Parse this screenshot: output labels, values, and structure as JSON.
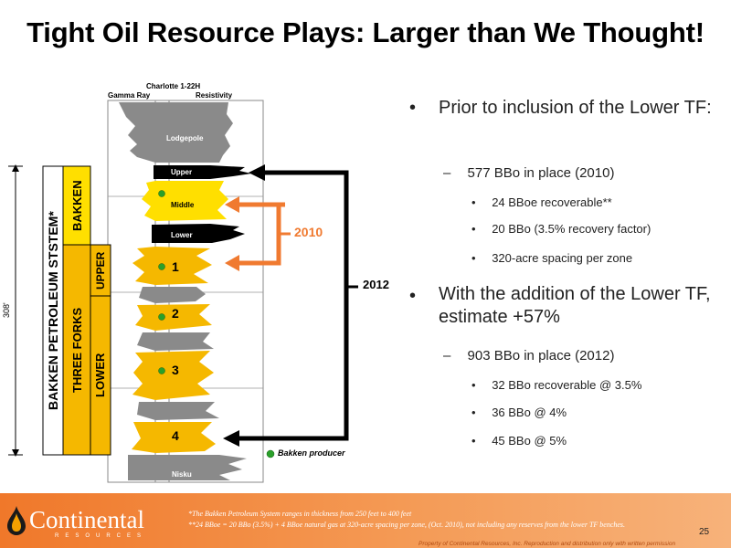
{
  "slide": {
    "title": "Tight Oil Resource Plays: Larger than We Thought!",
    "page_number": "25"
  },
  "log": {
    "well_name": "Charlotte 1-22H",
    "gamma_ray_label": "Gamma Ray",
    "resistivity_label": "Resistivity",
    "formations": {
      "lodgepole": "Lodgepole",
      "upper": "Upper",
      "middle": "Middle",
      "lower": "Lower",
      "nisku": "Nisku"
    },
    "zones": [
      "1",
      "2",
      "3",
      "4"
    ],
    "producer_legend": "Bakken producer",
    "thickness_label": "308'",
    "system_label": "BAKKEN PETROLEUM STSTEM*",
    "bakken_label": "BAKKEN",
    "three_forks_label": "THREE FORKS",
    "upper_label": "UPPER",
    "lower_label": "LOWER",
    "year_2010": "2010",
    "year_2012": "2012"
  },
  "bullets": [
    {
      "text": "Prior to inclusion of the Lower TF:",
      "sub": [
        {
          "text": "577 BBo in place (2010)",
          "sub": [
            "24 BBoe recoverable**",
            "20 BBo (3.5% recovery factor)",
            "320-acre spacing per zone"
          ]
        }
      ]
    },
    {
      "text": "With the addition of the Lower TF, estimate +57%",
      "sub": [
        {
          "text": "903 BBo in place (2012)",
          "sub": [
            "32 BBo recoverable @ 3.5%",
            "36 BBo @ 4%",
            "45 BBo @ 5%"
          ]
        }
      ]
    }
  ],
  "footer": {
    "logo_text": "Continental",
    "logo_subtext": "RESOURCES",
    "note1": "*The Bakken Petroleum System ranges in thickness from 250 feet to 400 feet",
    "note2": "**24 BBoe = 20 BBo (3.5%) + 4 BBoe natural gas at 320-acre spacing per zone, (Oct. 2010), not including any reserves from the lower TF benches.",
    "copyright": "Property of Continental Resources, Inc. Reproduction and distribution only with written permission"
  },
  "colors": {
    "yellow_fill": "#ffdf00",
    "orange_fill": "#f5b800",
    "arrow_orange": "#f07a30",
    "arrow_black": "#000000",
    "producer_green": "#2aa02a",
    "footer_orange": "#f0782a"
  }
}
